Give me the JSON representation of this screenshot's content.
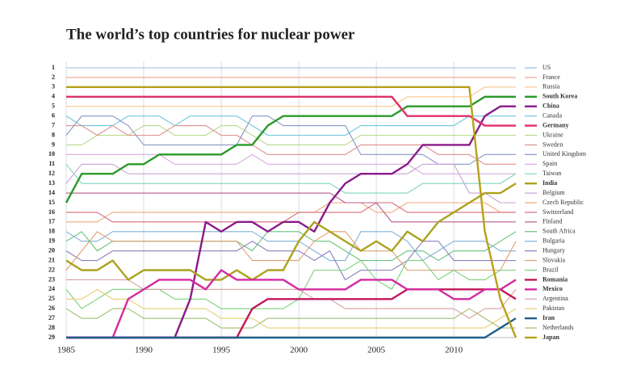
{
  "chart_data": {
    "type": "line",
    "title": "The world’s top countries for nuclear power",
    "x": [
      1985,
      1986,
      1987,
      1988,
      1989,
      1990,
      1991,
      1992,
      1993,
      1994,
      1995,
      1996,
      1997,
      1998,
      1999,
      2000,
      2001,
      2002,
      2003,
      2004,
      2005,
      2006,
      2007,
      2008,
      2009,
      2010,
      2011,
      2012,
      2013,
      2014
    ],
    "xlim": [
      1985,
      2014
    ],
    "xticks": [
      1985,
      1990,
      1995,
      2000,
      2005,
      2010
    ],
    "ylim": [
      1,
      29
    ],
    "yticks": [
      1,
      2,
      3,
      4,
      5,
      6,
      7,
      8,
      9,
      10,
      11,
      12,
      13,
      14,
      15,
      16,
      17,
      18,
      19,
      20,
      21,
      22,
      23,
      24,
      25,
      26,
      27,
      28,
      29
    ],
    "y_inverted": true,
    "grid": true,
    "series": [
      {
        "name": "US",
        "color": "#9bbbe0",
        "values": [
          1,
          1,
          1,
          1,
          1,
          1,
          1,
          1,
          1,
          1,
          1,
          1,
          1,
          1,
          1,
          1,
          1,
          1,
          1,
          1,
          1,
          1,
          1,
          1,
          1,
          1,
          1,
          1,
          1,
          1
        ]
      },
      {
        "name": "France",
        "color": "#eca394",
        "values": [
          2,
          2,
          2,
          2,
          2,
          2,
          2,
          2,
          2,
          2,
          2,
          2,
          2,
          2,
          2,
          2,
          2,
          2,
          2,
          2,
          2,
          2,
          2,
          2,
          2,
          2,
          2,
          2,
          2,
          2
        ]
      },
      {
        "name": "Russia",
        "color": "#f7c98a",
        "values": [
          5,
          5,
          5,
          5,
          5,
          5,
          5,
          5,
          5,
          5,
          5,
          5,
          5,
          5,
          5,
          5,
          5,
          5,
          5,
          5,
          5,
          5,
          4,
          4,
          4,
          4,
          4,
          3,
          3,
          3
        ]
      },
      {
        "name": "South Korea",
        "color": "#2a9a2a",
        "emphasis": true,
        "values": [
          15,
          12,
          12,
          12,
          11,
          11,
          10,
          10,
          10,
          10,
          10,
          9,
          9,
          7,
          6,
          6,
          6,
          6,
          6,
          6,
          6,
          6,
          5,
          5,
          5,
          5,
          5,
          4,
          4,
          4
        ]
      },
      {
        "name": "China",
        "color": "#8a1a8a",
        "emphasis": true,
        "values": [
          29,
          29,
          29,
          29,
          29,
          29,
          29,
          29,
          25,
          17,
          18,
          17,
          17,
          18,
          17,
          17,
          18,
          15,
          13,
          12,
          12,
          12,
          11,
          9,
          9,
          9,
          9,
          6,
          5,
          5
        ]
      },
      {
        "name": "Canada",
        "color": "#6ec6e0",
        "values": [
          6,
          7,
          7,
          7,
          6,
          6,
          6,
          7,
          6,
          6,
          6,
          6,
          7,
          8,
          8,
          8,
          8,
          8,
          8,
          7,
          7,
          7,
          7,
          7,
          7,
          7,
          6,
          6,
          6,
          6
        ]
      },
      {
        "name": "Germany",
        "color": "#e0306a",
        "emphasis": true,
        "values": [
          4,
          4,
          4,
          4,
          4,
          4,
          4,
          4,
          4,
          4,
          4,
          4,
          4,
          4,
          4,
          4,
          4,
          4,
          4,
          4,
          4,
          4,
          6,
          6,
          6,
          6,
          6,
          7,
          7,
          7
        ]
      },
      {
        "name": "Ukraine",
        "color": "#b9d98c",
        "values": [
          9,
          9,
          8,
          8,
          8,
          7,
          7,
          8,
          8,
          8,
          7,
          7,
          8,
          9,
          9,
          9,
          9,
          9,
          9,
          8,
          8,
          8,
          8,
          8,
          8,
          8,
          8,
          8,
          8,
          8
        ]
      },
      {
        "name": "Sweden",
        "color": "#e0908e",
        "values": [
          7,
          7,
          8,
          7,
          8,
          8,
          8,
          7,
          7,
          7,
          8,
          8,
          9,
          10,
          10,
          10,
          10,
          10,
          10,
          9,
          9,
          9,
          9,
          9,
          10,
          10,
          10,
          11,
          11,
          11
        ]
      },
      {
        "name": "United Kingdom",
        "color": "#8896c8",
        "values": [
          8,
          6,
          6,
          6,
          7,
          9,
          9,
          9,
          9,
          9,
          9,
          9,
          6,
          6,
          7,
          7,
          7,
          7,
          7,
          10,
          10,
          10,
          10,
          10,
          11,
          11,
          11,
          10,
          10,
          10
        ]
      },
      {
        "name": "Spain",
        "color": "#d9a9e0",
        "values": [
          10,
          10,
          10,
          10,
          10,
          10,
          10,
          11,
          11,
          11,
          11,
          11,
          10,
          11,
          11,
          11,
          11,
          11,
          11,
          11,
          11,
          11,
          11,
          12,
          12,
          12,
          12,
          12,
          12,
          12
        ]
      },
      {
        "name": "Taiwan",
        "color": "#7dd6c0",
        "values": [
          11,
          13,
          13,
          13,
          13,
          13,
          13,
          13,
          13,
          13,
          13,
          13,
          13,
          13,
          13,
          13,
          13,
          13,
          14,
          14,
          14,
          14,
          14,
          13,
          13,
          13,
          13,
          13,
          13,
          12
        ]
      },
      {
        "name": "India",
        "color": "#aca21e",
        "emphasis": true,
        "values": [
          21,
          22,
          22,
          21,
          23,
          22,
          22,
          22,
          22,
          23,
          23,
          22,
          23,
          22,
          22,
          19,
          17,
          18,
          19,
          20,
          19,
          20,
          18,
          19,
          17,
          16,
          15,
          14,
          14,
          13
        ]
      },
      {
        "name": "Belgium",
        "color": "#c7a3d9",
        "values": [
          13,
          11,
          11,
          11,
          12,
          12,
          12,
          12,
          12,
          12,
          12,
          12,
          12,
          12,
          12,
          12,
          12,
          12,
          12,
          12,
          12,
          12,
          12,
          11,
          11,
          11,
          14,
          14,
          15,
          15
        ]
      },
      {
        "name": "Czech Republic",
        "color": "#f0a878",
        "values": [
          17,
          17,
          17,
          16,
          16,
          16,
          16,
          16,
          16,
          16,
          16,
          16,
          16,
          16,
          16,
          16,
          16,
          15,
          15,
          15,
          16,
          16,
          15,
          15,
          15,
          15,
          15,
          15,
          16,
          16
        ]
      },
      {
        "name": "Switzerland",
        "color": "#d36a7a",
        "values": [
          16,
          16,
          16,
          17,
          17,
          17,
          17,
          17,
          17,
          17,
          17,
          17,
          17,
          17,
          17,
          16,
          16,
          16,
          16,
          16,
          15,
          15,
          16,
          16,
          16,
          16,
          16,
          16,
          16,
          16
        ]
      },
      {
        "name": "Finland",
        "color": "#b85c8c",
        "values": [
          14,
          14,
          14,
          14,
          14,
          14,
          14,
          14,
          14,
          14,
          14,
          14,
          14,
          14,
          14,
          14,
          14,
          14,
          15,
          15,
          15,
          17,
          17,
          17,
          17,
          17,
          17,
          17,
          17,
          17
        ]
      },
      {
        "name": "South Africa",
        "color": "#66c27a",
        "values": [
          19,
          18,
          20,
          19,
          19,
          19,
          19,
          19,
          19,
          19,
          19,
          19,
          20,
          18,
          18,
          18,
          19,
          19,
          20,
          21,
          21,
          21,
          20,
          20,
          21,
          20,
          20,
          20,
          19,
          18
        ]
      },
      {
        "name": "Bulgaria",
        "color": "#7fb0d8",
        "values": [
          18,
          19,
          19,
          18,
          18,
          18,
          18,
          18,
          18,
          18,
          18,
          18,
          18,
          19,
          19,
          19,
          20,
          21,
          21,
          18,
          18,
          18,
          19,
          21,
          20,
          19,
          19,
          19,
          20,
          20
        ]
      },
      {
        "name": "Hungary",
        "color": "#8a7dc0",
        "values": [
          20,
          21,
          21,
          20,
          20,
          20,
          20,
          20,
          20,
          20,
          20,
          20,
          19,
          20,
          20,
          20,
          21,
          20,
          23,
          22,
          22,
          22,
          21,
          19,
          19,
          21,
          21,
          21,
          21,
          21
        ]
      },
      {
        "name": "Slovakia",
        "color": "#e0a070",
        "values": [
          22,
          20,
          18,
          19,
          19,
          19,
          19,
          19,
          19,
          19,
          19,
          19,
          21,
          21,
          21,
          21,
          19,
          18,
          18,
          20,
          20,
          20,
          22,
          22,
          22,
          22,
          22,
          22,
          22,
          19
        ]
      },
      {
        "name": "Brazil",
        "color": "#7ad07a",
        "values": [
          24,
          26,
          25,
          24,
          24,
          24,
          24,
          25,
          25,
          25,
          26,
          26,
          26,
          26,
          26,
          25,
          22,
          22,
          22,
          21,
          23,
          24,
          21,
          21,
          23,
          22,
          23,
          23,
          22,
          22
        ]
      },
      {
        "name": "Romania",
        "color": "#c2185b",
        "emphasis": true,
        "values": [
          29,
          29,
          29,
          29,
          29,
          29,
          29,
          29,
          29,
          29,
          29,
          29,
          26,
          25,
          25,
          25,
          25,
          25,
          25,
          25,
          25,
          25,
          24,
          24,
          24,
          24,
          24,
          24,
          24,
          25
        ]
      },
      {
        "name": "Mexico",
        "color": "#d42aa0",
        "emphasis": true,
        "values": [
          29,
          29,
          29,
          29,
          25,
          24,
          23,
          23,
          23,
          24,
          22,
          23,
          23,
          23,
          23,
          24,
          24,
          24,
          24,
          23,
          23,
          23,
          24,
          24,
          24,
          25,
          25,
          24,
          24,
          23
        ]
      },
      {
        "name": "Argentina",
        "color": "#d8a0a0",
        "values": [
          23,
          23,
          23,
          23,
          23,
          24,
          24,
          24,
          24,
          24,
          24,
          24,
          24,
          24,
          24,
          24,
          25,
          25,
          26,
          26,
          26,
          26,
          26,
          26,
          26,
          26,
          27,
          26,
          26,
          24
        ]
      },
      {
        "name": "Pakistan",
        "color": "#e6d070",
        "values": [
          25,
          25,
          24,
          25,
          25,
          26,
          26,
          26,
          26,
          26,
          27,
          27,
          27,
          28,
          28,
          28,
          28,
          28,
          28,
          28,
          28,
          28,
          28,
          28,
          28,
          28,
          28,
          28,
          27,
          26
        ]
      },
      {
        "name": "Iran",
        "color": "#1f5f8b",
        "emphasis": true,
        "values": [
          29,
          29,
          29,
          29,
          29,
          29,
          29,
          29,
          29,
          29,
          29,
          29,
          29,
          29,
          29,
          29,
          29,
          29,
          29,
          29,
          29,
          29,
          29,
          29,
          29,
          29,
          29,
          29,
          28,
          27
        ]
      },
      {
        "name": "Netherlands",
        "color": "#a0c070",
        "values": [
          26,
          27,
          27,
          26,
          26,
          27,
          27,
          27,
          27,
          27,
          28,
          28,
          28,
          27,
          27,
          27,
          27,
          27,
          27,
          27,
          27,
          27,
          27,
          27,
          27,
          27,
          26,
          27,
          28,
          28
        ]
      },
      {
        "name": "Japan",
        "color": "#b8a018",
        "emphasis": true,
        "values": [
          3,
          3,
          3,
          3,
          3,
          3,
          3,
          3,
          3,
          3,
          3,
          3,
          3,
          3,
          3,
          3,
          3,
          3,
          3,
          3,
          3,
          3,
          3,
          3,
          3,
          3,
          3,
          18,
          25,
          29
        ]
      }
    ]
  }
}
